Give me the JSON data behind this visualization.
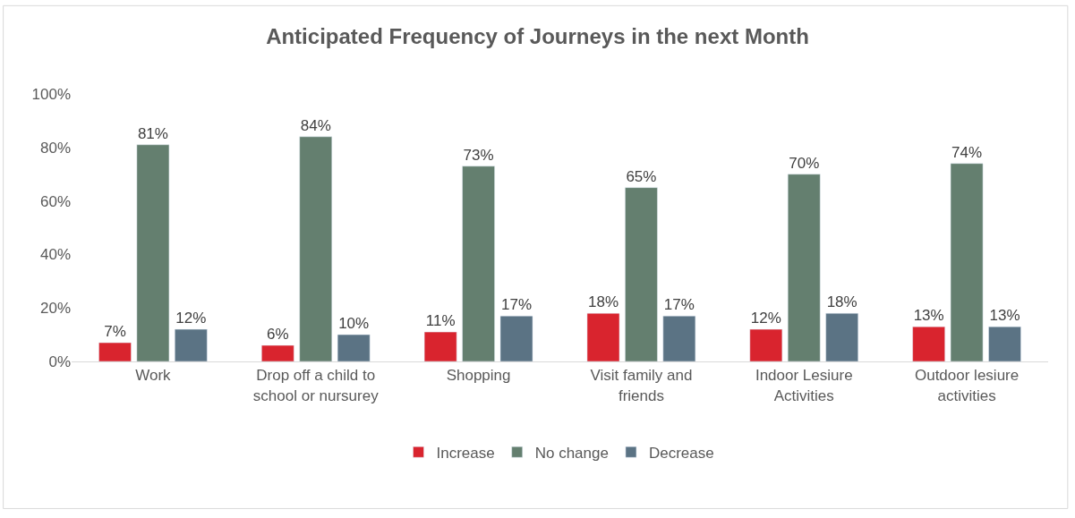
{
  "chart_data": {
    "type": "bar",
    "title": "Anticipated Frequency of Journeys in the next Month",
    "categories": [
      "Work",
      "Drop off a child to school or nursurey",
      "Shopping",
      "Visit family and friends",
      "Indoor Lesiure Activities",
      "Outdoor lesiure activities"
    ],
    "series": [
      {
        "name": "Increase",
        "color": "#d9242e",
        "values": [
          7,
          6,
          11,
          18,
          12,
          13
        ],
        "value_labels": [
          "7%",
          "6%",
          "11%",
          "18%",
          "12%",
          "13%"
        ]
      },
      {
        "name": "No change",
        "color": "#647f6f",
        "values": [
          81,
          84,
          73,
          65,
          70,
          74
        ],
        "value_labels": [
          "81%",
          "84%",
          "73%",
          "65%",
          "70%",
          "74%"
        ]
      },
      {
        "name": "Decrease",
        "color": "#5b7384",
        "values": [
          12,
          10,
          17,
          17,
          18,
          13
        ],
        "value_labels": [
          "12%",
          "10%",
          "17%",
          "17%",
          "18%",
          "13%"
        ]
      }
    ],
    "ylim": [
      0,
      100
    ],
    "yticks": [
      {
        "value": 0,
        "label": "0%"
      },
      {
        "value": 20,
        "label": "20%"
      },
      {
        "value": 40,
        "label": "40%"
      },
      {
        "value": 60,
        "label": "60%"
      },
      {
        "value": 80,
        "label": "80%"
      },
      {
        "value": 100,
        "label": "100%"
      }
    ],
    "grid": false,
    "legend": "bottom"
  }
}
